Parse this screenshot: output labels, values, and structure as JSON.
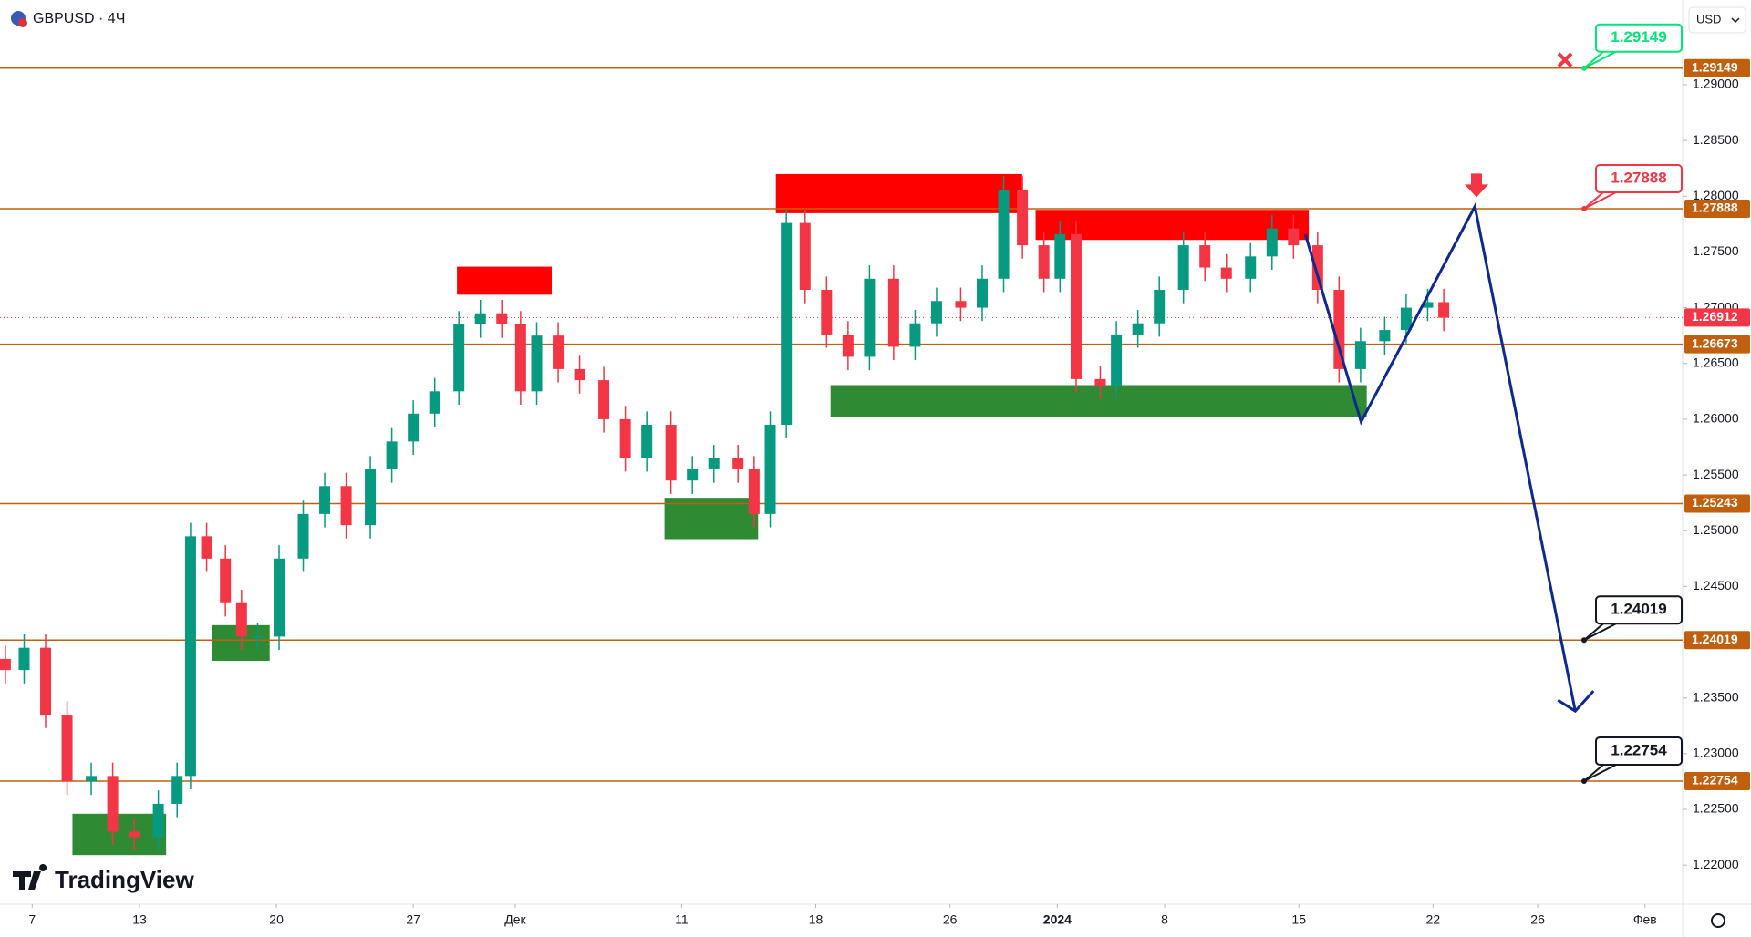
{
  "chart_data": {
    "type": "candlestick",
    "symbol": "GBPUSD · 4Ч",
    "currency": "USD",
    "brand": "TradingView",
    "up_color": "#089981",
    "down_color": "#f23645",
    "x": [
      -1.0,
      -0.3,
      0.5,
      1.3,
      2.2,
      3.0,
      3.8,
      4.7,
      5.4,
      5.9,
      6.5,
      7.2,
      7.8,
      8.4,
      9.2,
      10.1,
      10.9,
      11.7,
      12.6,
      13.4,
      14.2,
      15.0,
      15.9,
      16.7,
      17.5,
      18.2,
      18.8,
      19.6,
      20.4,
      21.3,
      22.1,
      22.9,
      23.8,
      24.6,
      25.4,
      26.3,
      26.9,
      27.5,
      28.1,
      28.8,
      29.6,
      30.4,
      31.2,
      32.1,
      32.9,
      33.7,
      34.6,
      35.4,
      36.2,
      36.9,
      37.7,
      38.3,
      38.9,
      39.8,
      40.4,
      41.2,
      42.0,
      42.9,
      43.7,
      44.5,
      45.4,
      46.2,
      47.0,
      47.9,
      48.7,
      49.5,
      50.4,
      51.2,
      52.0,
      52.6
    ],
    "open": [
      1.2385,
      1.2375,
      1.2395,
      1.2335,
      1.2275,
      1.228,
      1.223,
      1.2225,
      1.2255,
      1.228,
      1.2495,
      1.2475,
      1.2435,
      1.2405,
      1.2405,
      1.2475,
      1.2515,
      1.254,
      1.2505,
      1.2555,
      1.258,
      1.2605,
      1.2625,
      1.2685,
      1.2695,
      1.2685,
      1.2625,
      1.2675,
      1.2645,
      1.2635,
      1.26,
      1.2565,
      1.2595,
      1.2545,
      1.2555,
      1.2565,
      1.2555,
      1.2515,
      1.2595,
      1.2776,
      1.2716,
      1.2676,
      1.2656,
      1.2726,
      1.2665,
      1.2686,
      1.2706,
      1.27,
      1.2726,
      1.2806,
      1.2756,
      1.2726,
      1.2766,
      1.2636,
      1.263,
      1.2676,
      1.2686,
      1.2716,
      1.2756,
      1.2736,
      1.2726,
      1.2746,
      1.2771,
      1.2756,
      1.2716,
      1.2645,
      1.267,
      1.268,
      1.27,
      1.2705
    ],
    "high": [
      1.2397,
      1.2407,
      1.2407,
      1.2347,
      1.2292,
      1.2292,
      1.2242,
      1.2267,
      1.2292,
      1.2507,
      1.2507,
      1.2487,
      1.2447,
      1.2417,
      1.2487,
      1.2527,
      1.2552,
      1.2552,
      1.2567,
      1.2592,
      1.2617,
      1.2637,
      1.2697,
      1.2707,
      1.2707,
      1.2697,
      1.2687,
      1.2687,
      1.2657,
      1.2647,
      1.2612,
      1.2607,
      1.2607,
      1.2567,
      1.2577,
      1.2577,
      1.2567,
      1.2607,
      1.2788,
      1.2788,
      1.2728,
      1.2688,
      1.2738,
      1.2738,
      1.2698,
      1.2718,
      1.2718,
      1.2738,
      1.2818,
      1.2818,
      1.2768,
      1.2778,
      1.2778,
      1.2648,
      1.2688,
      1.2698,
      1.2728,
      1.2768,
      1.2768,
      1.2748,
      1.2758,
      1.2783,
      1.2783,
      1.2768,
      1.2728,
      1.2682,
      1.2692,
      1.2712,
      1.2717,
      1.2717
    ],
    "low": [
      1.2363,
      1.2363,
      1.2323,
      1.2263,
      1.2263,
      1.2218,
      1.2213,
      1.2213,
      1.2243,
      1.2268,
      1.2463,
      1.2423,
      1.2393,
      1.2393,
      1.2393,
      1.2463,
      1.2503,
      1.2493,
      1.2493,
      1.2543,
      1.2568,
      1.2593,
      1.2613,
      1.2673,
      1.2673,
      1.2613,
      1.2613,
      1.2633,
      1.2623,
      1.2588,
      1.2553,
      1.2553,
      1.2533,
      1.2533,
      1.2543,
      1.2543,
      1.2503,
      1.2503,
      1.2583,
      1.2704,
      1.2664,
      1.2644,
      1.2644,
      1.2653,
      1.2653,
      1.2674,
      1.2688,
      1.2688,
      1.2714,
      1.2744,
      1.2714,
      1.2714,
      1.2624,
      1.2618,
      1.2618,
      1.2664,
      1.2674,
      1.2704,
      1.2724,
      1.2714,
      1.2714,
      1.2734,
      1.2744,
      1.2704,
      1.2633,
      1.2633,
      1.2658,
      1.2668,
      1.2688,
      1.2679
    ],
    "close": [
      1.2375,
      1.2395,
      1.2335,
      1.2275,
      1.228,
      1.223,
      1.2225,
      1.2255,
      1.228,
      1.2495,
      1.2475,
      1.2435,
      1.2405,
      1.2405,
      1.2475,
      1.2515,
      1.254,
      1.2505,
      1.2555,
      1.258,
      1.2605,
      1.2625,
      1.2685,
      1.2695,
      1.2685,
      1.2625,
      1.2675,
      1.2645,
      1.2635,
      1.26,
      1.2565,
      1.2595,
      1.2545,
      1.2555,
      1.2565,
      1.2555,
      1.2515,
      1.2595,
      1.2776,
      1.2716,
      1.2676,
      1.2656,
      1.2726,
      1.2665,
      1.2686,
      1.2706,
      1.27,
      1.2726,
      1.2806,
      1.2756,
      1.2726,
      1.2766,
      1.2636,
      1.263,
      1.2676,
      1.2686,
      1.2716,
      1.2756,
      1.2736,
      1.2726,
      1.2746,
      1.2771,
      1.2756,
      1.2716,
      1.2645,
      1.267,
      1.268,
      1.27,
      1.2705,
      1.2691
    ],
    "xlim": [
      -1.2,
      61.5
    ],
    "ylim": [
      1.2165,
      1.2976
    ],
    "xticks": [
      {
        "value": 0,
        "label": "7"
      },
      {
        "value": 4,
        "label": "13"
      },
      {
        "value": 9.1,
        "label": "20"
      },
      {
        "value": 14.2,
        "label": "27"
      },
      {
        "value": 18,
        "label": "Дек"
      },
      {
        "value": 24.2,
        "label": "11"
      },
      {
        "value": 29.2,
        "label": "18"
      },
      {
        "value": 34.2,
        "label": "26"
      },
      {
        "value": 38.2,
        "label": "2024"
      },
      {
        "value": 42.2,
        "label": "8"
      },
      {
        "value": 47.2,
        "label": "15"
      },
      {
        "value": 52.2,
        "label": "22"
      },
      {
        "value": 56.1,
        "label": "26"
      },
      {
        "value": 60.1,
        "label": "Фев"
      }
    ],
    "yticks": [
      {
        "value": 1.22,
        "label": "1.22000"
      },
      {
        "value": 1.225,
        "label": "1.22500"
      },
      {
        "value": 1.23,
        "label": "1.23000"
      },
      {
        "value": 1.235,
        "label": "1.23500"
      },
      {
        "value": 1.24,
        "label": "1.24000"
      },
      {
        "value": 1.245,
        "label": "1.24500"
      },
      {
        "value": 1.25,
        "label": "1.25000"
      },
      {
        "value": 1.255,
        "label": "1.25500"
      },
      {
        "value": 1.26,
        "label": "1.26000"
      },
      {
        "value": 1.265,
        "label": "1.26500"
      },
      {
        "value": 1.27,
        "label": "1.27000"
      },
      {
        "value": 1.275,
        "label": "1.27500"
      },
      {
        "value": 1.28,
        "label": "1.28000"
      },
      {
        "value": 1.285,
        "label": "1.28500"
      },
      {
        "value": 1.29,
        "label": "1.29000"
      }
    ],
    "grid": false,
    "level_color": "#c0600f",
    "levels": [
      {
        "value": 1.29149,
        "callout": "#00e676"
      },
      {
        "value": 1.27888,
        "callout": "#f23645"
      },
      {
        "value": 1.26673
      },
      {
        "value": 1.25243
      },
      {
        "value": 1.24019,
        "callout": "#131722"
      },
      {
        "value": 1.22754,
        "callout": "#131722"
      }
    ],
    "last_price": 1.26912,
    "last_price_color": "#f23645",
    "zones": [
      {
        "x": [
          15.83,
          19.36
        ],
        "y": [
          1.27117,
          1.27368
        ],
        "color": "#ff0000"
      },
      {
        "x": [
          27.71,
          36.89
        ],
        "y": [
          1.27848,
          1.28199
        ],
        "color": "#ff0000"
      },
      {
        "x": [
          37.39,
          47.57
        ],
        "y": [
          1.27608,
          1.27878
        ],
        "color": "#ff0000"
      },
      {
        "x": [
          1.5,
          4.99
        ],
        "y": [
          1.2209,
          1.22461
        ],
        "color": "#2e8b34"
      },
      {
        "x": [
          6.69,
          8.85
        ],
        "y": [
          1.23833,
          1.24153
        ],
        "color": "#2e8b34"
      },
      {
        "x": [
          23.56,
          27.05
        ],
        "y": [
          1.24924,
          1.25295
        ],
        "color": "#2e8b34"
      },
      {
        "x": [
          29.75,
          49.73
        ],
        "y": [
          1.26016,
          1.26306
        ],
        "color": "#2e8b34"
      }
    ],
    "projection": {
      "x": [
        47.44,
        49.52,
        53.76,
        57.5
      ],
      "y": [
        1.27658,
        1.25976,
        1.27909,
        1.23382
      ],
      "color": "#0d2a8f"
    }
  }
}
